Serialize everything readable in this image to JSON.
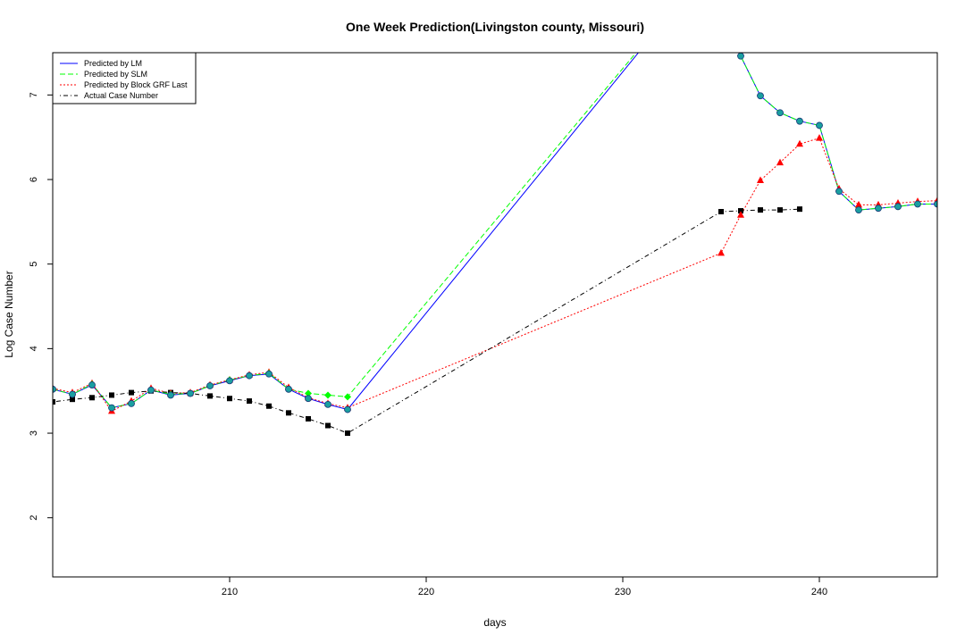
{
  "chart_data": {
    "type": "line",
    "title": "One Week Prediction(Livingston county, Missouri)",
    "xlabel": "days",
    "ylabel": "Log Case Number",
    "xlim": [
      201,
      246
    ],
    "ylim": [
      1.3,
      7.5
    ],
    "xticks": [
      210,
      220,
      230,
      240
    ],
    "yticks": [
      2,
      3,
      4,
      5,
      6,
      7
    ],
    "legend_position": "top-left",
    "series": [
      {
        "name": "Predicted by LM",
        "color": "#0000ff",
        "line": "solid",
        "marker": "circle",
        "x": [
          201,
          202,
          203,
          204,
          205,
          206,
          207,
          208,
          209,
          210,
          211,
          212,
          213,
          214,
          215,
          216,
          235,
          236,
          237,
          238,
          239,
          240,
          241,
          242,
          243,
          244,
          245,
          246
        ],
        "y": [
          3.52,
          3.46,
          3.57,
          3.3,
          3.35,
          3.51,
          3.45,
          3.47,
          3.56,
          3.62,
          3.68,
          3.7,
          3.52,
          3.41,
          3.34,
          3.28,
          8.7,
          7.46,
          6.99,
          6.79,
          6.69,
          6.64,
          5.86,
          5.64,
          5.66,
          5.68,
          5.71,
          5.71
        ]
      },
      {
        "name": "Predicted by SLM",
        "color": "#00ff00",
        "line": "dashed",
        "marker": "diamond",
        "x": [
          201,
          202,
          203,
          204,
          205,
          206,
          207,
          208,
          209,
          210,
          211,
          212,
          213,
          214,
          215,
          216,
          235,
          236,
          237,
          238,
          239,
          240,
          241,
          242,
          243,
          244,
          245,
          246
        ],
        "y": [
          3.52,
          3.46,
          3.58,
          3.3,
          3.35,
          3.51,
          3.46,
          3.47,
          3.56,
          3.63,
          3.68,
          3.71,
          3.52,
          3.47,
          3.45,
          3.43,
          8.7,
          7.46,
          6.99,
          6.79,
          6.69,
          6.64,
          5.86,
          5.64,
          5.66,
          5.68,
          5.71,
          5.71
        ]
      },
      {
        "name": "Predicted by Block GRF Last",
        "color": "#ff0000",
        "line": "dotted",
        "marker": "triangle",
        "x": [
          201,
          202,
          203,
          204,
          205,
          206,
          207,
          208,
          209,
          210,
          211,
          212,
          213,
          214,
          215,
          216,
          235,
          236,
          237,
          238,
          239,
          240,
          241,
          242,
          243,
          244,
          245,
          246
        ],
        "y": [
          3.53,
          3.48,
          3.59,
          3.26,
          3.38,
          3.53,
          3.47,
          3.48,
          3.57,
          3.63,
          3.69,
          3.72,
          3.54,
          3.42,
          3.35,
          3.3,
          5.13,
          5.58,
          5.99,
          6.2,
          6.42,
          6.49,
          5.89,
          5.7,
          5.7,
          5.72,
          5.74,
          5.75
        ]
      },
      {
        "name": "Actual Case Number",
        "color": "#000000",
        "line": "dotdash",
        "marker": "square",
        "x": [
          201,
          202,
          203,
          204,
          205,
          206,
          207,
          208,
          209,
          210,
          211,
          212,
          213,
          214,
          215,
          216,
          235,
          236,
          237,
          238,
          239
        ],
        "y": [
          3.37,
          3.4,
          3.42,
          3.45,
          3.48,
          3.5,
          3.48,
          3.47,
          3.44,
          3.41,
          3.38,
          3.32,
          3.24,
          3.17,
          3.09,
          3.0,
          5.62,
          5.63,
          5.64,
          5.64,
          5.65
        ]
      }
    ]
  }
}
